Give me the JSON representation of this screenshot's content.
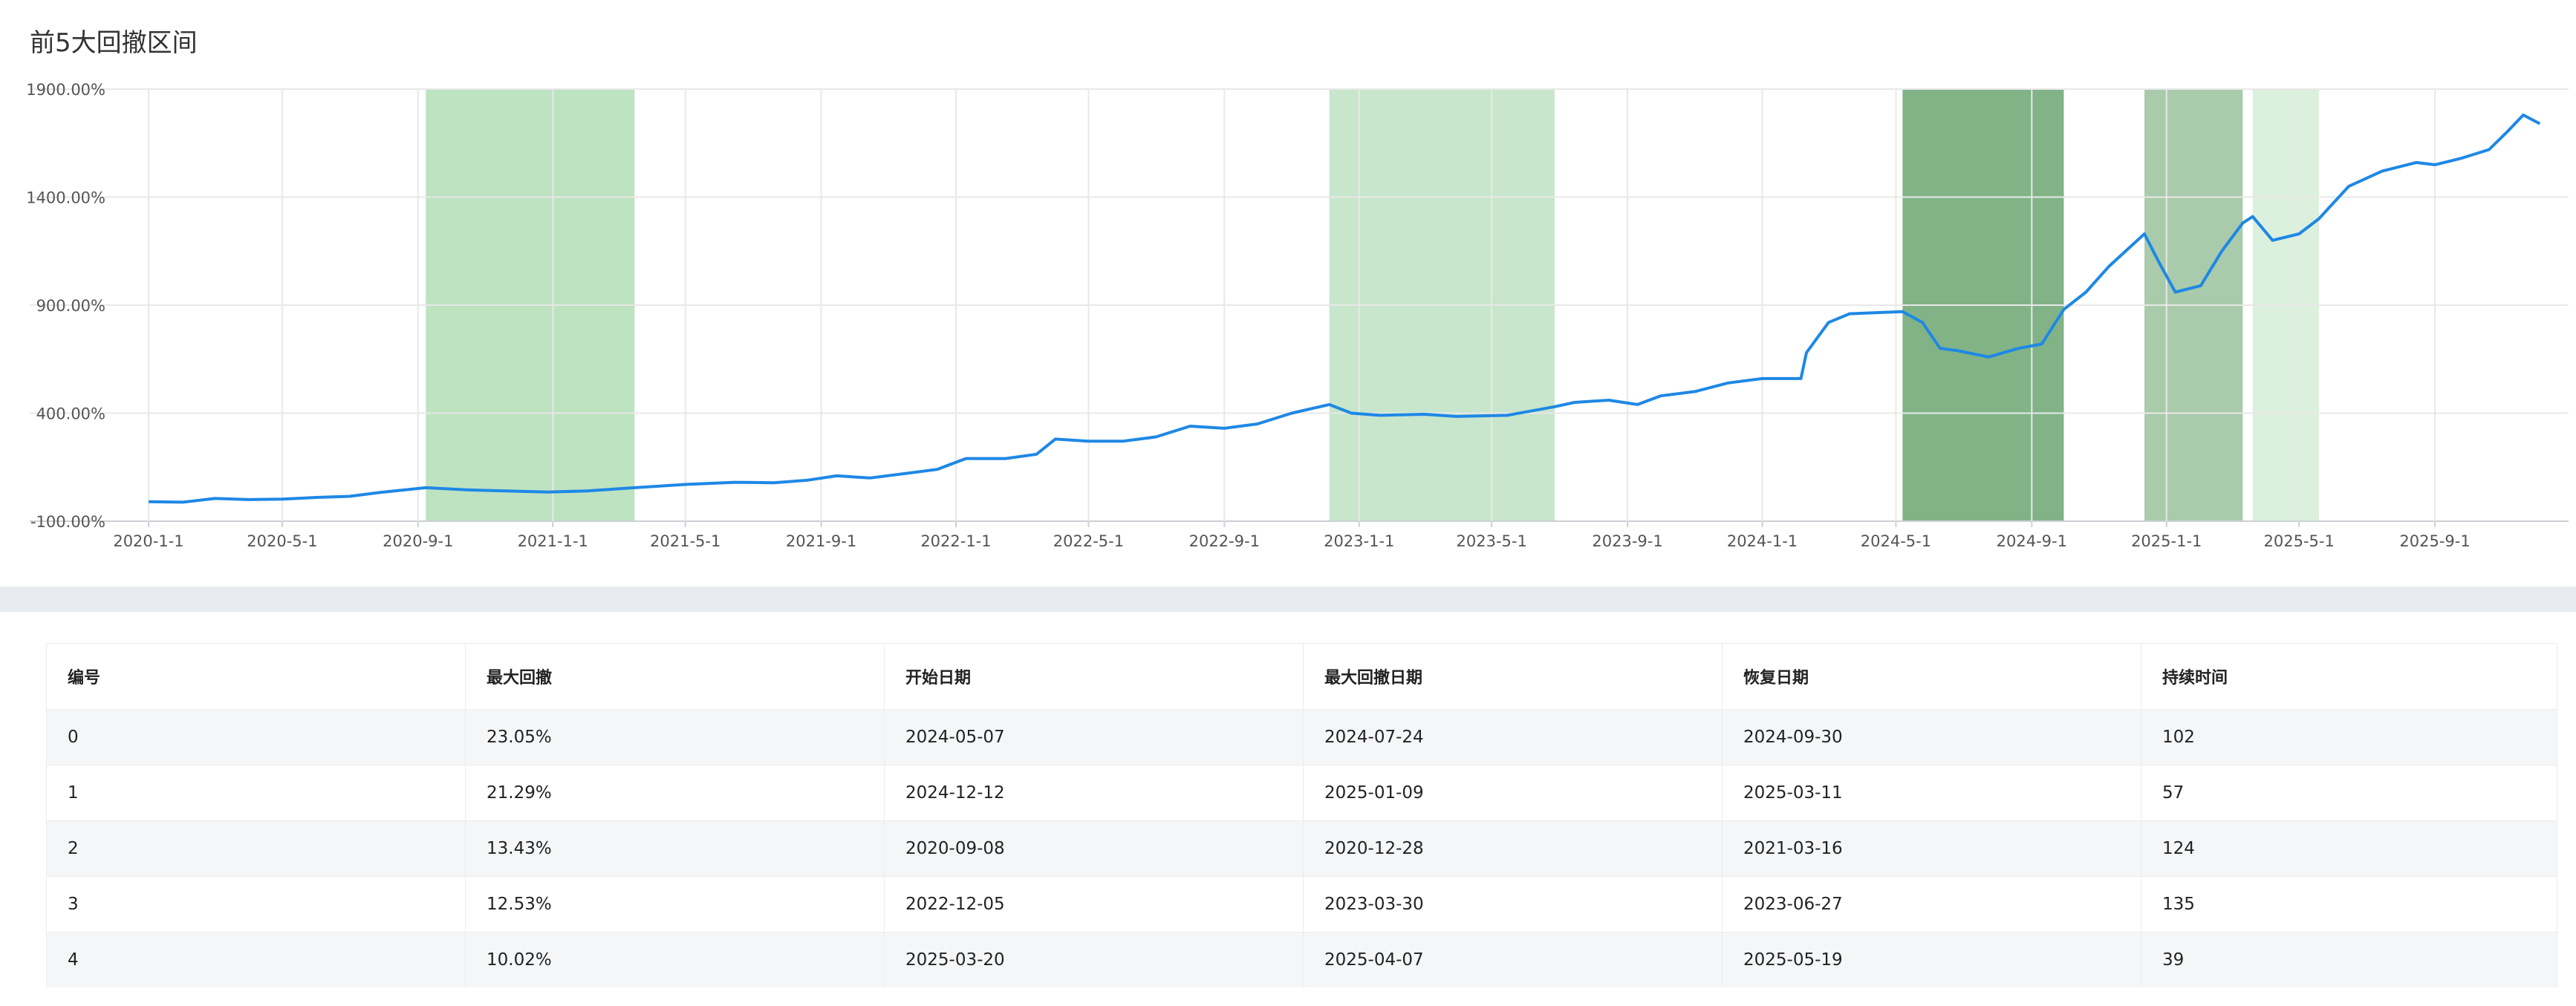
{
  "title": "前5大回撤区间",
  "chart_data": {
    "type": "line",
    "title": "前5大回撤区间",
    "ylim": [
      -100,
      1900
    ],
    "yticks": [
      "-100.00%",
      "400.00%",
      "900.00%",
      "1400.00%",
      "1900.00%"
    ],
    "ytick_values": [
      -100,
      400,
      900,
      1400,
      1900
    ],
    "xlim": [
      "2020-01-01",
      "2025-12-31"
    ],
    "xticks": [
      "2020-1-1",
      "2020-5-1",
      "2020-9-1",
      "2021-1-1",
      "2021-5-1",
      "2021-9-1",
      "2022-1-1",
      "2022-5-1",
      "2022-9-1",
      "2023-1-1",
      "2023-5-1",
      "2023-9-1",
      "2024-1-1",
      "2024-5-1",
      "2024-9-1",
      "2025-1-1",
      "2025-5-1",
      "2025-9-1"
    ],
    "grid": true,
    "line_color": "#1e88e5",
    "drawdown_regions": [
      {
        "start": "2024-05-07",
        "end": "2024-09-30",
        "color": "#81b387"
      },
      {
        "start": "2024-12-12",
        "end": "2025-03-11",
        "color": "#a9cbab"
      },
      {
        "start": "2020-09-08",
        "end": "2021-03-16",
        "color": "#bde3c1"
      },
      {
        "start": "2022-12-05",
        "end": "2023-06-27",
        "color": "#c7e6cb"
      },
      {
        "start": "2025-03-20",
        "end": "2025-05-19",
        "color": "#dbf0dd"
      }
    ],
    "series": [
      {
        "points": [
          [
            "2020-01-01",
            -10
          ],
          [
            "2020-02-01",
            -12
          ],
          [
            "2020-03-01",
            5
          ],
          [
            "2020-04-01",
            0
          ],
          [
            "2020-05-01",
            2
          ],
          [
            "2020-06-01",
            10
          ],
          [
            "2020-07-01",
            15
          ],
          [
            "2020-08-01",
            35
          ],
          [
            "2020-09-08",
            55
          ],
          [
            "2020-10-15",
            45
          ],
          [
            "2020-11-20",
            40
          ],
          [
            "2020-12-28",
            35
          ],
          [
            "2021-02-01",
            40
          ],
          [
            "2021-03-16",
            55
          ],
          [
            "2021-05-01",
            70
          ],
          [
            "2021-06-15",
            80
          ],
          [
            "2021-07-20",
            78
          ],
          [
            "2021-08-20",
            90
          ],
          [
            "2021-09-15",
            110
          ],
          [
            "2021-10-15",
            100
          ],
          [
            "2021-11-15",
            120
          ],
          [
            "2021-12-15",
            140
          ],
          [
            "2022-01-10",
            190
          ],
          [
            "2022-02-15",
            190
          ],
          [
            "2022-03-15",
            210
          ],
          [
            "2022-04-01",
            280
          ],
          [
            "2022-05-01",
            270
          ],
          [
            "2022-06-01",
            270
          ],
          [
            "2022-07-01",
            290
          ],
          [
            "2022-08-01",
            340
          ],
          [
            "2022-09-01",
            330
          ],
          [
            "2022-10-01",
            350
          ],
          [
            "2022-11-01",
            400
          ],
          [
            "2022-12-05",
            440
          ],
          [
            "2022-12-25",
            400
          ],
          [
            "2023-01-20",
            390
          ],
          [
            "2023-03-01",
            395
          ],
          [
            "2023-03-30",
            385
          ],
          [
            "2023-05-15",
            390
          ],
          [
            "2023-06-27",
            430
          ],
          [
            "2023-07-15",
            450
          ],
          [
            "2023-08-15",
            460
          ],
          [
            "2023-09-10",
            440
          ],
          [
            "2023-10-01",
            480
          ],
          [
            "2023-11-01",
            500
          ],
          [
            "2023-12-01",
            540
          ],
          [
            "2024-01-01",
            560
          ],
          [
            "2024-02-05",
            560
          ],
          [
            "2024-02-10",
            680
          ],
          [
            "2024-03-01",
            820
          ],
          [
            "2024-03-20",
            860
          ],
          [
            "2024-05-07",
            870
          ],
          [
            "2024-05-25",
            820
          ],
          [
            "2024-06-10",
            700
          ],
          [
            "2024-06-25",
            690
          ],
          [
            "2024-07-24",
            660
          ],
          [
            "2024-08-20",
            700
          ],
          [
            "2024-09-10",
            720
          ],
          [
            "2024-09-30",
            880
          ],
          [
            "2024-10-20",
            960
          ],
          [
            "2024-11-10",
            1080
          ],
          [
            "2024-12-12",
            1230
          ],
          [
            "2024-12-25",
            1100
          ],
          [
            "2025-01-09",
            960
          ],
          [
            "2025-02-01",
            990
          ],
          [
            "2025-02-20",
            1150
          ],
          [
            "2025-03-11",
            1280
          ],
          [
            "2025-03-20",
            1310
          ],
          [
            "2025-04-07",
            1200
          ],
          [
            "2025-05-01",
            1230
          ],
          [
            "2025-05-19",
            1300
          ],
          [
            "2025-06-15",
            1450
          ],
          [
            "2025-07-15",
            1520
          ],
          [
            "2025-08-15",
            1560
          ],
          [
            "2025-09-01",
            1550
          ],
          [
            "2025-09-25",
            1580
          ],
          [
            "2025-10-20",
            1620
          ],
          [
            "2025-11-05",
            1700
          ],
          [
            "2025-11-20",
            1780
          ],
          [
            "2025-12-05",
            1740
          ]
        ]
      }
    ]
  },
  "table": {
    "headers": [
      "编号",
      "最大回撤",
      "开始日期",
      "最大回撤日期",
      "恢复日期",
      "持续时间"
    ],
    "rows": [
      [
        "0",
        "23.05%",
        "2024-05-07",
        "2024-07-24",
        "2024-09-30",
        "102"
      ],
      [
        "1",
        "21.29%",
        "2024-12-12",
        "2025-01-09",
        "2025-03-11",
        "57"
      ],
      [
        "2",
        "13.43%",
        "2020-09-08",
        "2020-12-28",
        "2021-03-16",
        "124"
      ],
      [
        "3",
        "12.53%",
        "2022-12-05",
        "2023-03-30",
        "2023-06-27",
        "135"
      ],
      [
        "4",
        "10.02%",
        "2025-03-20",
        "2025-04-07",
        "2025-05-19",
        "39"
      ]
    ]
  }
}
